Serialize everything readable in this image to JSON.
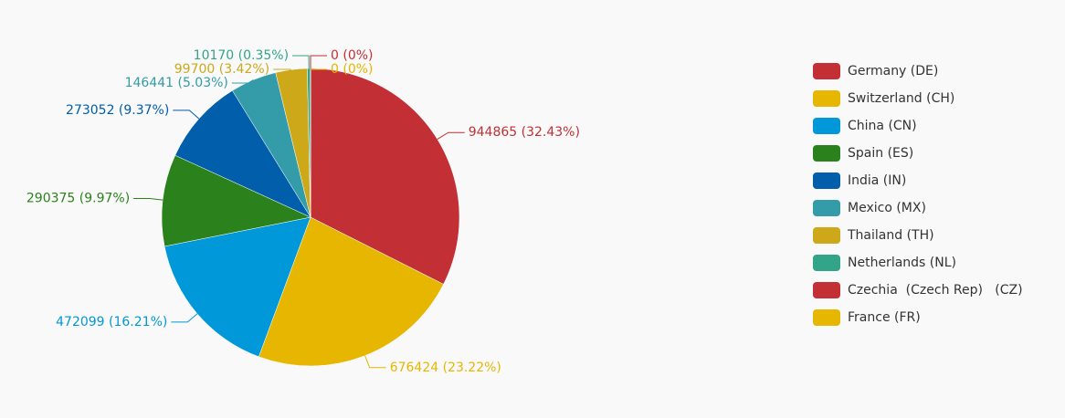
{
  "chart_data": {
    "type": "pie",
    "categories": [
      "Germany (DE)",
      "Switzerland (CH)",
      "China (CN)",
      "Spain (ES)",
      "India (IN)",
      "Mexico (MX)",
      "Thailand (TH)",
      "Netherlands (NL)",
      "Czechia  (Czech Rep)   (CZ)",
      "France (FR)"
    ],
    "values": [
      944865,
      676424,
      472099,
      290375,
      273052,
      146441,
      99700,
      10170,
      0,
      0
    ],
    "value_labels": [
      "944865 (32.43%)",
      "676424 (23.22%)",
      "472099 (16.21%)",
      "290375 (9.97%)",
      "273052 (9.37%)",
      "146441 (5.03%)",
      "99700 (3.42%)",
      "10170 (0.35%)",
      "0 (0%)",
      "0 (0%)"
    ],
    "colors": [
      "#c23035",
      "#e6b600",
      "#0098d9",
      "#2b821d",
      "#005eaa",
      "#339ca8",
      "#cda819",
      "#32a487",
      "#c23035",
      "#e6b600"
    ],
    "legend": "right"
  }
}
